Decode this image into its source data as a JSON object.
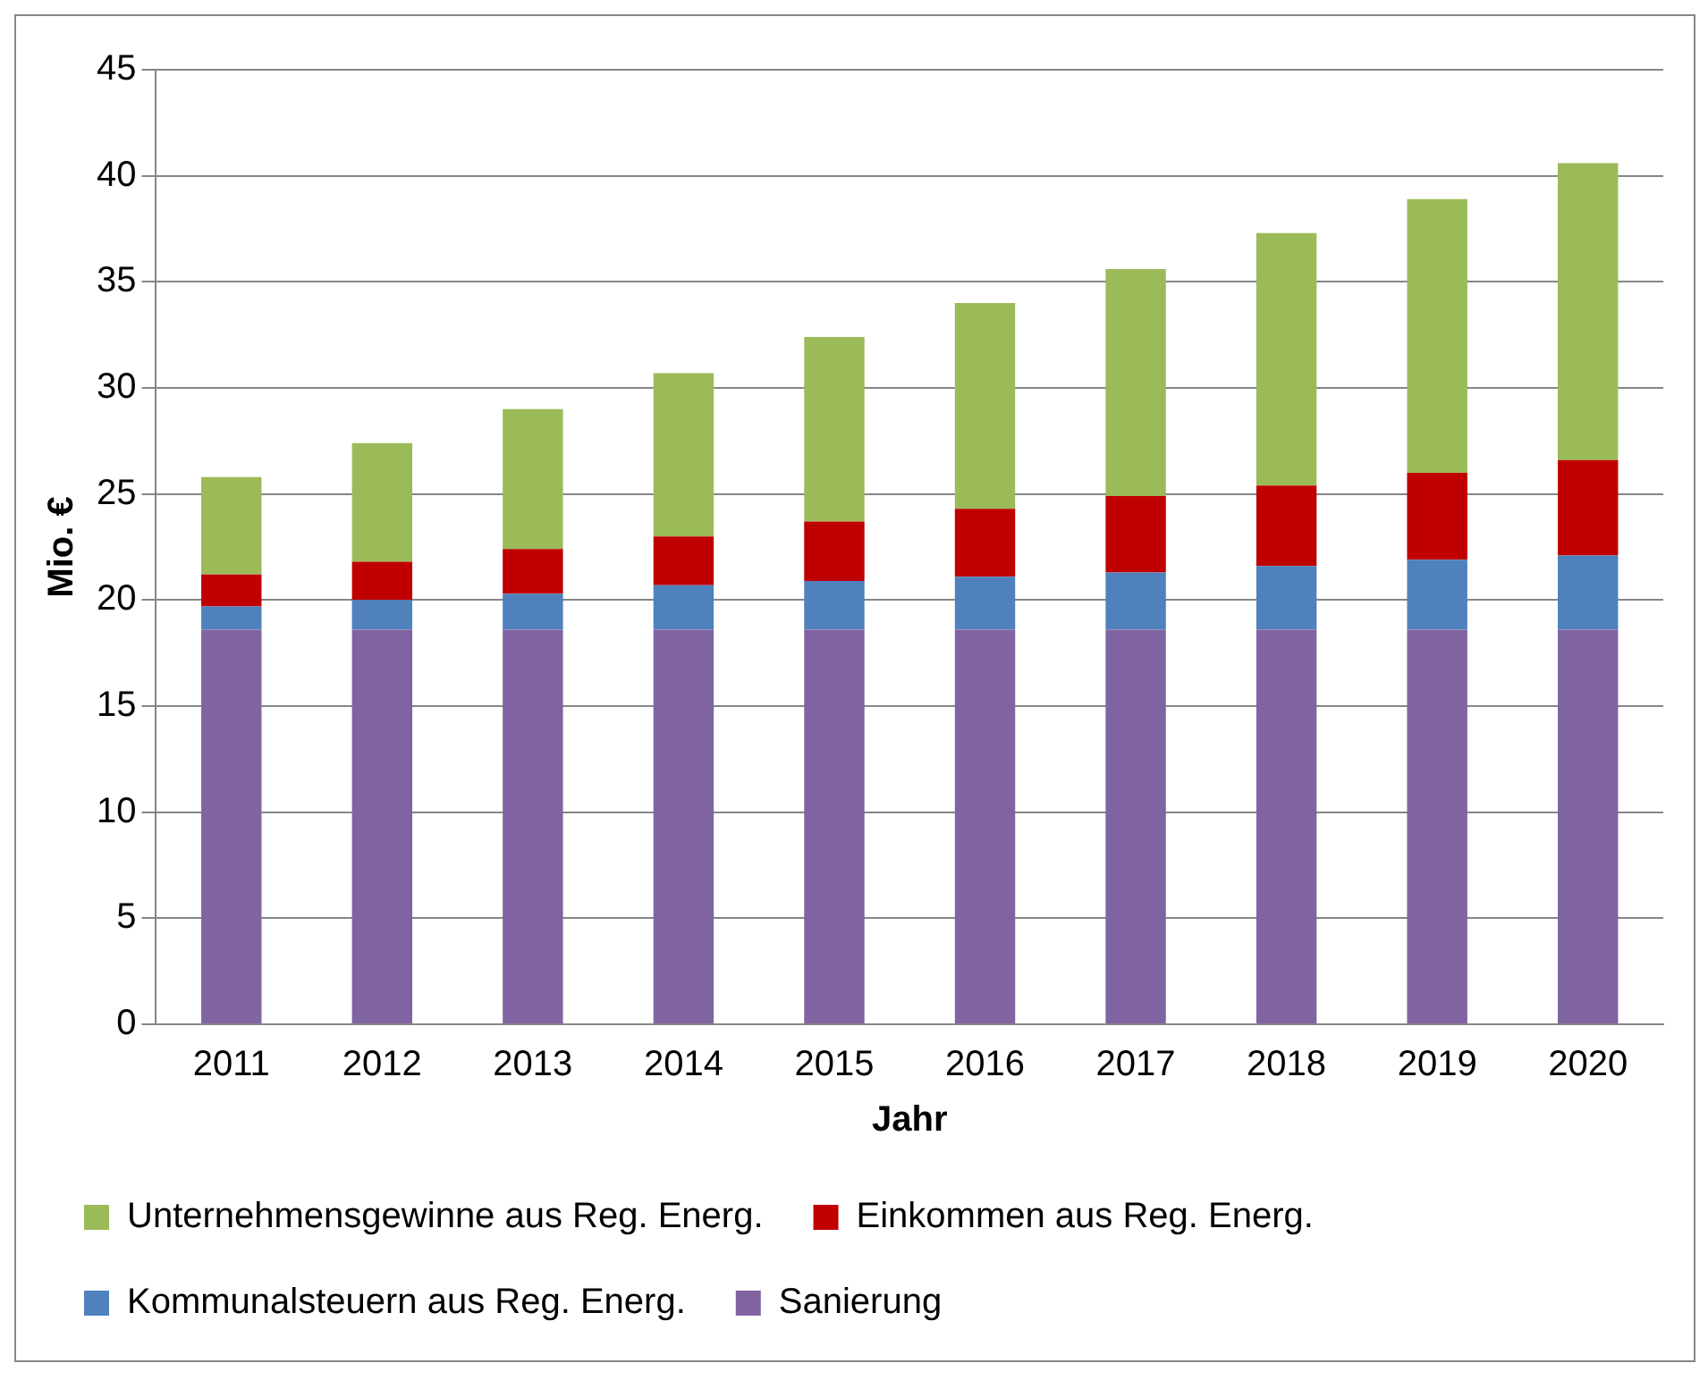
{
  "chart_data": {
    "type": "bar",
    "stacked": true,
    "xlabel": "Jahr",
    "ylabel": "Mio. €",
    "categories": [
      "2011",
      "2012",
      "2013",
      "2014",
      "2015",
      "2016",
      "2017",
      "2018",
      "2019",
      "2020"
    ],
    "series": [
      {
        "name": "Sanierung",
        "color": "#8064a2",
        "values": [
          18.6,
          18.6,
          18.6,
          18.6,
          18.6,
          18.6,
          18.6,
          18.6,
          18.6,
          18.6
        ]
      },
      {
        "name": "Kommunalsteuern aus Reg. Energ.",
        "color": "#4f81bd",
        "values": [
          1.1,
          1.4,
          1.7,
          2.1,
          2.3,
          2.5,
          2.7,
          3.0,
          3.3,
          3.5
        ]
      },
      {
        "name": "Einkommen aus Reg. Energ.",
        "color": "#c00000",
        "values": [
          1.5,
          1.8,
          2.1,
          2.3,
          2.8,
          3.2,
          3.6,
          3.8,
          4.1,
          4.5
        ]
      },
      {
        "name": "Unternehmensgewinne aus Reg. Energ.",
        "color": "#9bbb59",
        "values": [
          4.6,
          5.6,
          6.6,
          7.7,
          8.7,
          9.7,
          10.7,
          11.9,
          12.9,
          14.0
        ]
      }
    ],
    "ylim": [
      0,
      45
    ],
    "yticks": [
      0,
      5,
      10,
      15,
      20,
      25,
      30,
      35,
      40,
      45
    ],
    "grid": "y",
    "legend": "bottom"
  }
}
